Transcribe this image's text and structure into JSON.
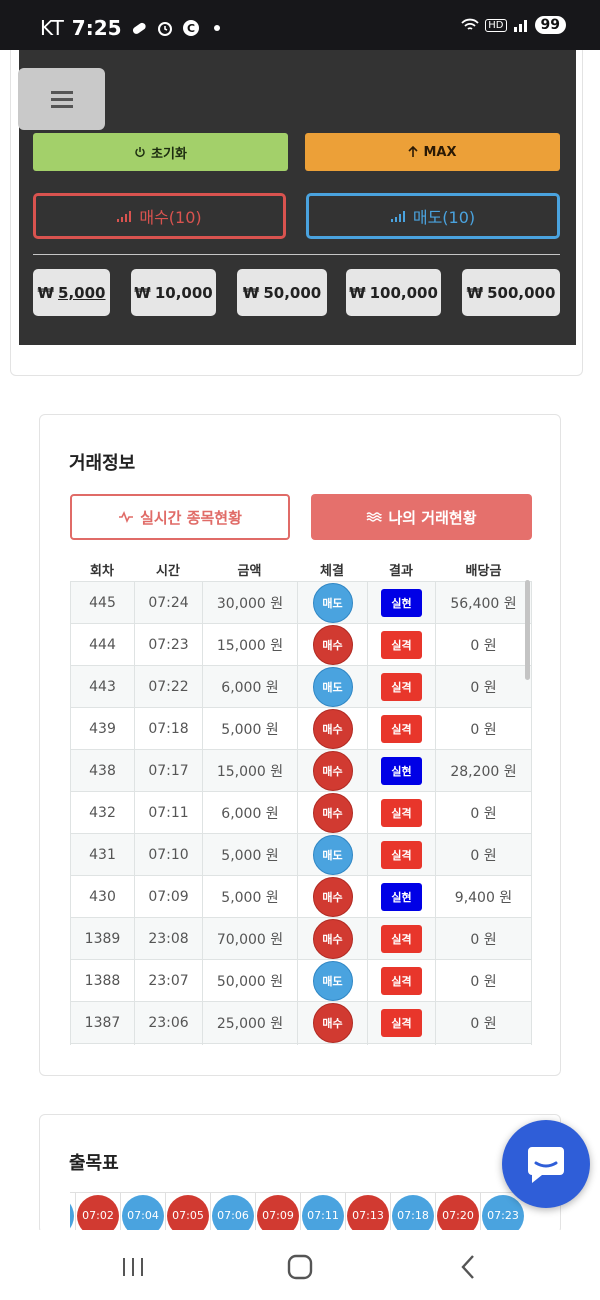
{
  "statusbar": {
    "carrier": "KT",
    "time": "7:25",
    "battery": "99",
    "hd": "HD"
  },
  "controls": {
    "reset_label": "초기화",
    "max_label": "MAX",
    "buy_label": "매수(10)",
    "sell_label": "매도(10)",
    "currency_symbol": "₩",
    "amounts": [
      "5,000",
      "10,000",
      "50,000",
      "100,000",
      "500,000"
    ]
  },
  "trade": {
    "title": "거래정보",
    "tab_live": "실시간 종목현황",
    "tab_mine": "나의 거래현황",
    "headers": [
      "회차",
      "시간",
      "금액",
      "체결",
      "결과",
      "배당금"
    ],
    "rows": [
      {
        "round": "445",
        "time": "07:24",
        "amount": "30,000 원",
        "side": "매도",
        "side_type": "sell",
        "result": "실현",
        "result_type": "hit",
        "payout": "56,400 원"
      },
      {
        "round": "444",
        "time": "07:23",
        "amount": "15,000 원",
        "side": "매수",
        "side_type": "buy",
        "result": "실격",
        "result_type": "miss",
        "payout": "0 원"
      },
      {
        "round": "443",
        "time": "07:22",
        "amount": "6,000 원",
        "side": "매도",
        "side_type": "sell",
        "result": "실격",
        "result_type": "miss",
        "payout": "0 원"
      },
      {
        "round": "439",
        "time": "07:18",
        "amount": "5,000 원",
        "side": "매수",
        "side_type": "buy",
        "result": "실격",
        "result_type": "miss",
        "payout": "0 원"
      },
      {
        "round": "438",
        "time": "07:17",
        "amount": "15,000 원",
        "side": "매수",
        "side_type": "buy",
        "result": "실현",
        "result_type": "hit",
        "payout": "28,200 원"
      },
      {
        "round": "432",
        "time": "07:11",
        "amount": "6,000 원",
        "side": "매수",
        "side_type": "buy",
        "result": "실격",
        "result_type": "miss",
        "payout": "0 원"
      },
      {
        "round": "431",
        "time": "07:10",
        "amount": "5,000 원",
        "side": "매도",
        "side_type": "sell",
        "result": "실격",
        "result_type": "miss",
        "payout": "0 원"
      },
      {
        "round": "430",
        "time": "07:09",
        "amount": "5,000 원",
        "side": "매수",
        "side_type": "buy",
        "result": "실현",
        "result_type": "hit",
        "payout": "9,400 원"
      },
      {
        "round": "1389",
        "time": "23:08",
        "amount": "70,000 원",
        "side": "매수",
        "side_type": "buy",
        "result": "실격",
        "result_type": "miss",
        "payout": "0 원"
      },
      {
        "round": "1388",
        "time": "23:07",
        "amount": "50,000 원",
        "side": "매도",
        "side_type": "sell",
        "result": "실격",
        "result_type": "miss",
        "payout": "0 원"
      },
      {
        "round": "1387",
        "time": "23:06",
        "amount": "25,000 원",
        "side": "매수",
        "side_type": "buy",
        "result": "실격",
        "result_type": "miss",
        "payout": "0 원"
      },
      {
        "round": "",
        "time": "",
        "amount": "",
        "side": "",
        "side_type": "buy",
        "result": "",
        "result_type": "none",
        "payout": ""
      }
    ]
  },
  "chart": {
    "title": "출목표",
    "chips": [
      {
        "label": "",
        "type": "sell"
      },
      {
        "label": "07:02",
        "type": "buy"
      },
      {
        "label": "07:04",
        "type": "sell"
      },
      {
        "label": "07:05",
        "type": "buy"
      },
      {
        "label": "07:06",
        "type": "sell"
      },
      {
        "label": "07:09",
        "type": "buy"
      },
      {
        "label": "07:11",
        "type": "sell"
      },
      {
        "label": "07:13",
        "type": "buy"
      },
      {
        "label": "07:18",
        "type": "sell"
      },
      {
        "label": "07:20",
        "type": "buy"
      },
      {
        "label": "07:23",
        "type": "sell"
      }
    ]
  },
  "colors": {
    "buy": "#d13a31",
    "sell": "#4aa3df",
    "hit": "#0000e6",
    "miss": "#e8362b",
    "accent": "#e5706c",
    "chat": "#2f5ed8"
  }
}
